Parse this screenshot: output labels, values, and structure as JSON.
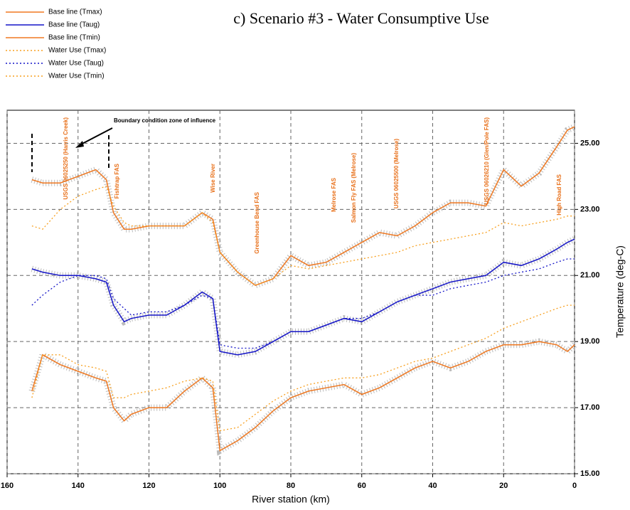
{
  "chart_data": {
    "type": "line",
    "title": "c) Scenario #3 - Water Consumptive Use",
    "x_label": "River station (km)",
    "y_label": "Temperature (deg-C)",
    "xlim": [
      160,
      0
    ],
    "xticks": [
      160,
      140,
      120,
      100,
      80,
      60,
      40,
      20,
      0
    ],
    "ylim": [
      15,
      26
    ],
    "yticks": [
      {
        "value": 15,
        "label": "15.00"
      },
      {
        "value": 17,
        "label": "17.00"
      },
      {
        "value": 19,
        "label": "19.00"
      },
      {
        "value": 21,
        "label": "21.00"
      },
      {
        "value": 23,
        "label": "23.00"
      },
      {
        "value": 25,
        "label": "25.00"
      }
    ],
    "grid": true,
    "legend": "upper left",
    "x": [
      153,
      150,
      145,
      140,
      135,
      132,
      130,
      127,
      125,
      120,
      115,
      110,
      105,
      102,
      100,
      95,
      90,
      85,
      80,
      75,
      70,
      65,
      60,
      55,
      50,
      45,
      40,
      35,
      30,
      25,
      20,
      15,
      10,
      5,
      2,
      0
    ],
    "series": [
      {
        "name": "Base line (Tmax)",
        "color": "#f07820",
        "style": "solid",
        "values": [
          23.9,
          23.8,
          23.8,
          24.0,
          24.2,
          23.9,
          22.9,
          22.4,
          22.4,
          22.5,
          22.5,
          22.5,
          22.9,
          22.7,
          21.7,
          21.1,
          20.7,
          20.9,
          21.6,
          21.3,
          21.4,
          21.7,
          22.0,
          22.3,
          22.2,
          22.5,
          22.9,
          23.2,
          23.2,
          23.1,
          24.2,
          23.7,
          24.1,
          24.9,
          25.4,
          25.5
        ]
      },
      {
        "name": "Base line (Taug)",
        "color": "#1414c8",
        "style": "solid",
        "values": [
          21.2,
          21.1,
          21.0,
          21.0,
          20.9,
          20.8,
          20.1,
          19.6,
          19.7,
          19.8,
          19.8,
          20.1,
          20.5,
          20.3,
          18.7,
          18.6,
          18.7,
          19.0,
          19.3,
          19.3,
          19.5,
          19.7,
          19.6,
          19.9,
          20.2,
          20.4,
          20.6,
          20.8,
          20.9,
          21.0,
          21.4,
          21.3,
          21.5,
          21.8,
          22.0,
          22.1
        ]
      },
      {
        "name": "Base line (Tmin)",
        "color": "#f07820",
        "style": "solid",
        "values": [
          17.5,
          18.6,
          18.3,
          18.1,
          17.9,
          17.8,
          17.0,
          16.6,
          16.8,
          17.0,
          17.0,
          17.5,
          17.9,
          17.6,
          15.7,
          16.0,
          16.4,
          16.9,
          17.3,
          17.5,
          17.6,
          17.7,
          17.4,
          17.6,
          17.9,
          18.2,
          18.4,
          18.2,
          18.4,
          18.7,
          18.9,
          18.9,
          19.0,
          18.9,
          18.7,
          18.9
        ]
      },
      {
        "name": "Water Use (Tmax)",
        "color": "#f7a020",
        "style": "dotted",
        "values": [
          22.5,
          22.4,
          23.0,
          23.4,
          23.6,
          23.7,
          23.1,
          22.6,
          22.5,
          22.5,
          22.5,
          22.5,
          22.9,
          22.6,
          21.7,
          21.1,
          20.7,
          20.9,
          21.3,
          21.2,
          21.3,
          21.4,
          21.5,
          21.6,
          21.7,
          21.9,
          22.0,
          22.1,
          22.2,
          22.3,
          22.6,
          22.5,
          22.6,
          22.7,
          22.8,
          22.8
        ]
      },
      {
        "name": "Water Use (Taug)",
        "color": "#1414c8",
        "style": "dotted",
        "values": [
          20.1,
          20.4,
          20.8,
          21.0,
          21.0,
          20.9,
          20.3,
          20.0,
          19.8,
          19.9,
          19.9,
          20.1,
          20.4,
          20.3,
          18.9,
          18.8,
          18.8,
          19.0,
          19.3,
          19.3,
          19.5,
          19.7,
          19.7,
          19.9,
          20.2,
          20.4,
          20.4,
          20.6,
          20.7,
          20.8,
          21.0,
          21.1,
          21.2,
          21.4,
          21.5,
          21.5
        ]
      },
      {
        "name": "Water Use (Tmin)",
        "color": "#f7a020",
        "style": "dotted",
        "values": [
          17.3,
          18.6,
          18.6,
          18.3,
          18.2,
          18.1,
          17.3,
          17.3,
          17.4,
          17.5,
          17.6,
          17.8,
          17.9,
          17.8,
          16.3,
          16.4,
          16.8,
          17.2,
          17.5,
          17.7,
          17.8,
          17.9,
          17.9,
          18.0,
          18.2,
          18.4,
          18.5,
          18.7,
          18.9,
          19.1,
          19.4,
          19.6,
          19.8,
          20.0,
          20.1,
          20.1
        ]
      }
    ],
    "annotations": [
      "USGS 06025250 (Harris Creek)",
      "Fishtrap FAS",
      "Wise River",
      "Greenhouse Bend FAS",
      "Melrose FAS",
      "Salmon Fly FAS (Melrose)",
      "USGS 06025500 (Melrose)",
      "USGS 06026210 (Glen/Pole FAS)",
      "High Road FAS"
    ],
    "boundary_note": "Boundary condition zone of influence"
  }
}
